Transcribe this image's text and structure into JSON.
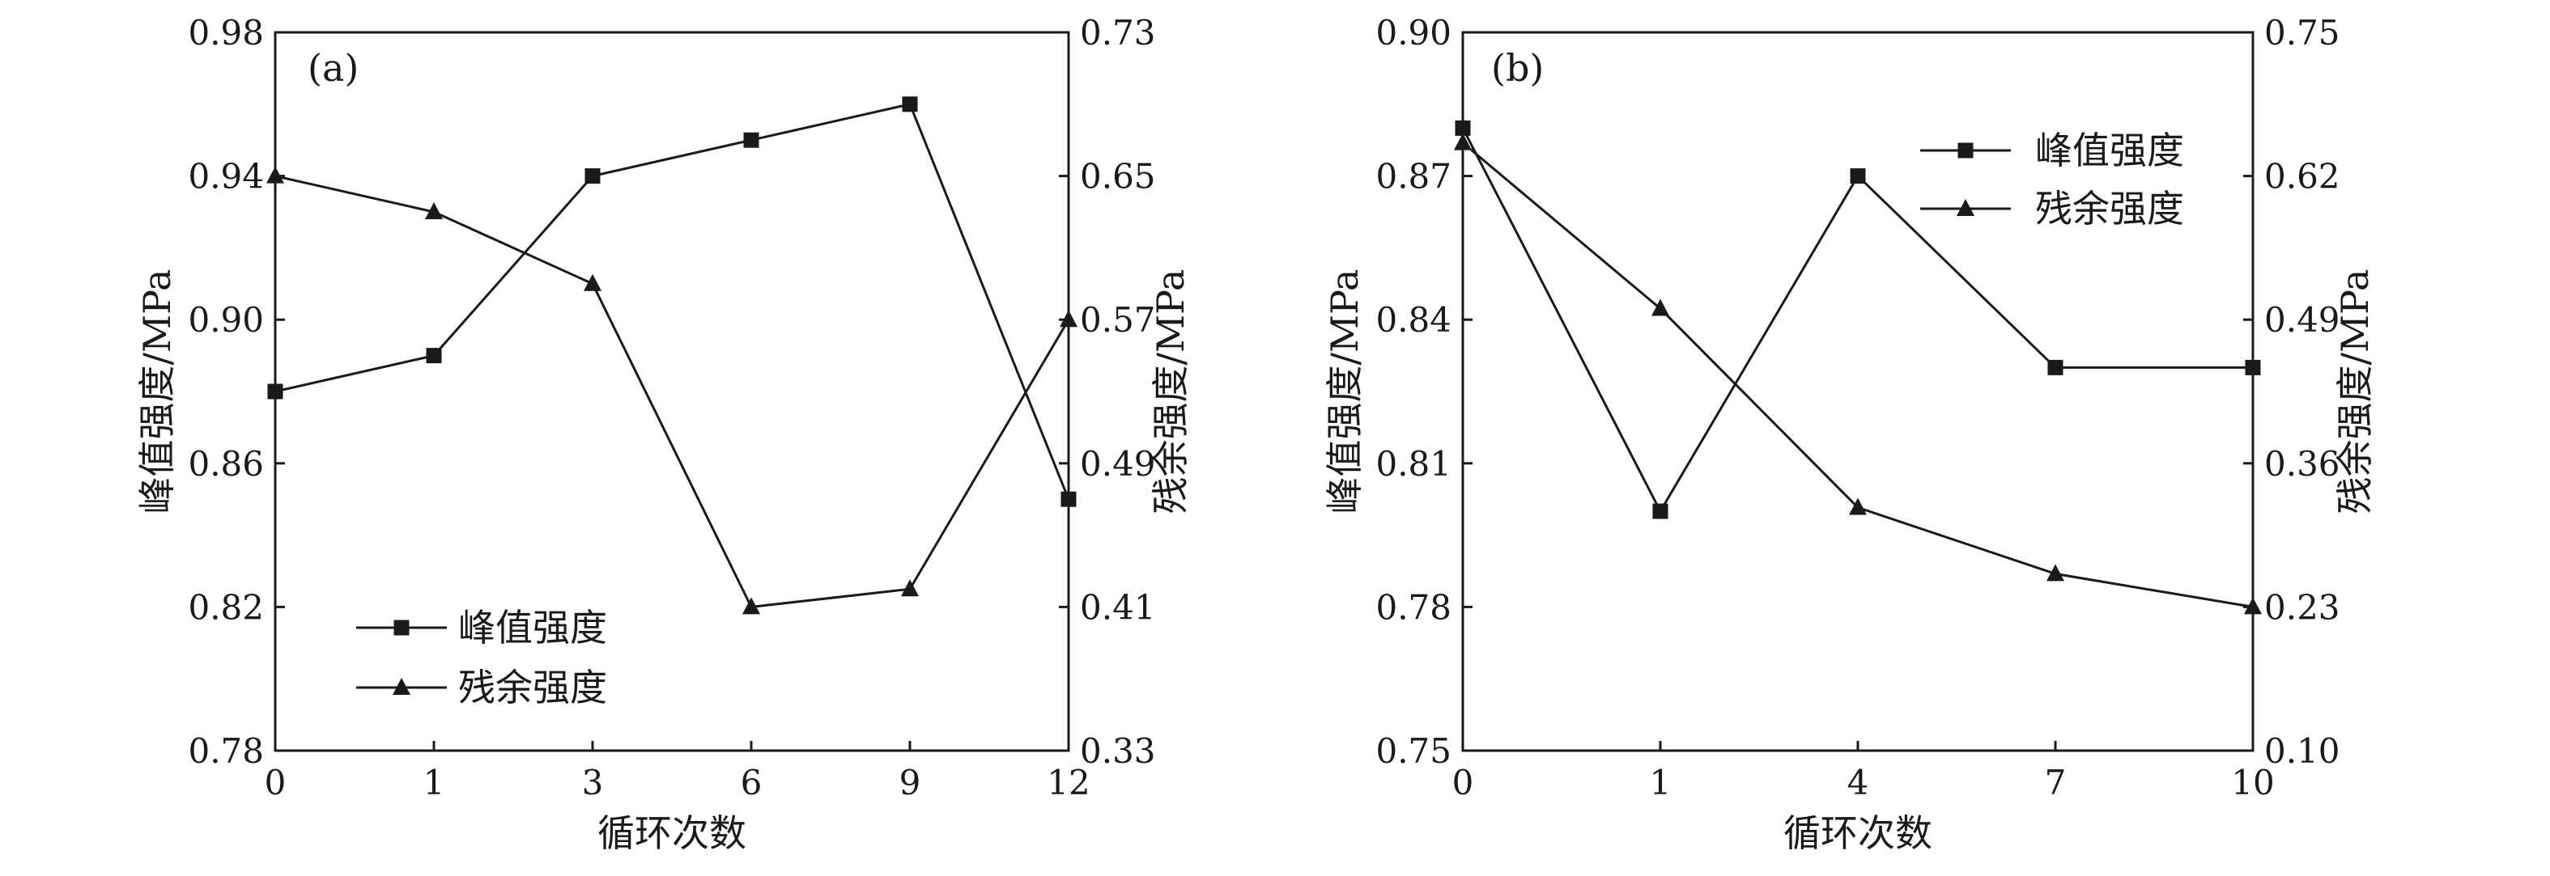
{
  "chart_data": [
    {
      "type": "line",
      "panel_label": "(a)",
      "xlabel": "循环次数",
      "ylabel_left": "峰值强度/MPa",
      "ylabel_right": "残余强度/MPa",
      "categories": [
        "0",
        "1",
        "3",
        "6",
        "9",
        "12"
      ],
      "y_left": {
        "range": [
          0.78,
          0.98
        ],
        "ticks": [
          "0.78",
          "0.82",
          "0.86",
          "0.90",
          "0.94",
          "0.98"
        ]
      },
      "y_right": {
        "range": [
          0.33,
          0.73
        ],
        "ticks": [
          "0.33",
          "0.41",
          "0.49",
          "0.57",
          "0.65",
          "0.73"
        ]
      },
      "legend": {
        "position": "bottom-left"
      },
      "series": [
        {
          "name": "峰值强度",
          "marker": "square",
          "axis": "left",
          "values": [
            0.88,
            0.89,
            0.94,
            0.95,
            0.96,
            0.85
          ]
        },
        {
          "name": "残余强度",
          "marker": "triangle",
          "axis": "right",
          "values": [
            0.65,
            0.63,
            0.59,
            0.41,
            0.42,
            0.57
          ]
        }
      ]
    },
    {
      "type": "line",
      "panel_label": "(b)",
      "xlabel": "循环次数",
      "ylabel_left": "峰值强度/MPa",
      "ylabel_right": "残余强度/MPa",
      "categories": [
        "0",
        "1",
        "4",
        "7",
        "10"
      ],
      "y_left": {
        "range": [
          0.75,
          0.9
        ],
        "ticks": [
          "0.75",
          "0.78",
          "0.81",
          "0.84",
          "0.87",
          "0.90"
        ]
      },
      "y_right": {
        "range": [
          0.1,
          0.75
        ],
        "ticks": [
          "0.10",
          "0.23",
          "0.36",
          "0.49",
          "0.62",
          "0.75"
        ]
      },
      "legend": {
        "position": "top-right"
      },
      "series": [
        {
          "name": "峰值强度",
          "marker": "square",
          "axis": "left",
          "values": [
            0.88,
            0.8,
            0.87,
            0.83,
            0.83
          ]
        },
        {
          "name": "残余强度",
          "marker": "triangle",
          "axis": "right",
          "values": [
            0.65,
            0.5,
            0.32,
            0.26,
            0.23
          ]
        }
      ]
    }
  ]
}
